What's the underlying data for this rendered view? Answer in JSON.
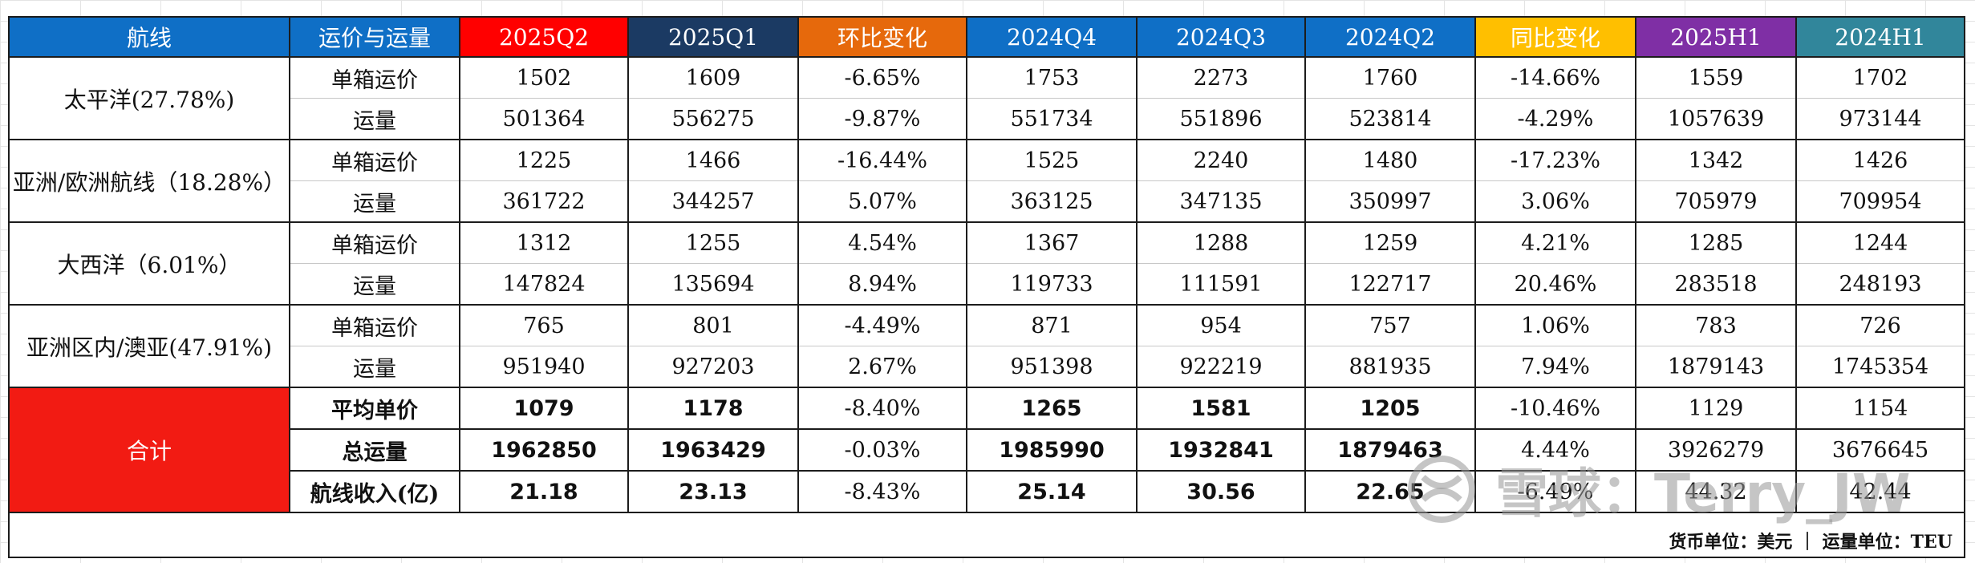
{
  "header": {
    "columns": [
      "航线",
      "运价与运量",
      "2025Q2",
      "2025Q1",
      "环比变化",
      "2024Q4",
      "2024Q3",
      "2024Q2",
      "同比变化",
      "2025H1",
      "2024H1"
    ],
    "colors": [
      "#0f6fc6",
      "#0f6fc6",
      "#ff0000",
      "#1b3a63",
      "#e6690c",
      "#0f6fc6",
      "#0f6fc6",
      "#0f6fc6",
      "#ffbf00",
      "#7f2fa5",
      "#31869b"
    ]
  },
  "routes": [
    {
      "name": "太平洋(27.78%)",
      "rows": [
        {
          "metric": "单箱运价",
          "values": [
            "1502",
            "1609",
            "-6.65%",
            "1753",
            "2273",
            "1760",
            "-14.66%",
            "1559",
            "1702"
          ]
        },
        {
          "metric": "运量",
          "values": [
            "501364",
            "556275",
            "-9.87%",
            "551734",
            "551896",
            "523814",
            "-4.29%",
            "1057639",
            "973144"
          ]
        }
      ]
    },
    {
      "name": "亚洲/欧洲航线（18.28%）",
      "rows": [
        {
          "metric": "单箱运价",
          "values": [
            "1225",
            "1466",
            "-16.44%",
            "1525",
            "2240",
            "1480",
            "-17.23%",
            "1342",
            "1426"
          ]
        },
        {
          "metric": "运量",
          "values": [
            "361722",
            "344257",
            "5.07%",
            "363125",
            "347135",
            "350997",
            "3.06%",
            "705979",
            "709954"
          ]
        }
      ]
    },
    {
      "name": "大西洋（6.01%）",
      "rows": [
        {
          "metric": "单箱运价",
          "values": [
            "1312",
            "1255",
            "4.54%",
            "1367",
            "1288",
            "1259",
            "4.21%",
            "1285",
            "1244"
          ]
        },
        {
          "metric": "运量",
          "values": [
            "147824",
            "135694",
            "8.94%",
            "119733",
            "111591",
            "122717",
            "20.46%",
            "283518",
            "248193"
          ]
        }
      ]
    },
    {
      "name": "亚洲区内/澳亚(47.91%)",
      "rows": [
        {
          "metric": "单箱运价",
          "values": [
            "765",
            "801",
            "-4.49%",
            "871",
            "954",
            "757",
            "1.06%",
            "783",
            "726"
          ]
        },
        {
          "metric": "运量",
          "values": [
            "951940",
            "927203",
            "2.67%",
            "951398",
            "922219",
            "881935",
            "7.94%",
            "1879143",
            "1745354"
          ]
        }
      ]
    }
  ],
  "total": {
    "label": "合计",
    "rows": [
      {
        "metric": "平均单价",
        "values": [
          "1079",
          "1178",
          "-8.40%",
          "1265",
          "1581",
          "1205",
          "-10.46%",
          "1129",
          "1154"
        ]
      },
      {
        "metric": "总运量",
        "values": [
          "1962850",
          "1963429",
          "-0.03%",
          "1985990",
          "1932841",
          "1879463",
          "4.44%",
          "3926279",
          "3676645"
        ]
      },
      {
        "metric": "航线收入(亿)",
        "values": [
          "21.18",
          "23.13",
          "-8.43%",
          "25.14",
          "30.56",
          "22.65",
          "-6.49%",
          "44.32",
          "42.44"
        ]
      }
    ]
  },
  "footer": "货币单位：美元 ｜ 运量单位：TEU",
  "watermark": {
    "text": "雪球：Terry_JW",
    "icon": "xueqiu-snowball-logo"
  }
}
